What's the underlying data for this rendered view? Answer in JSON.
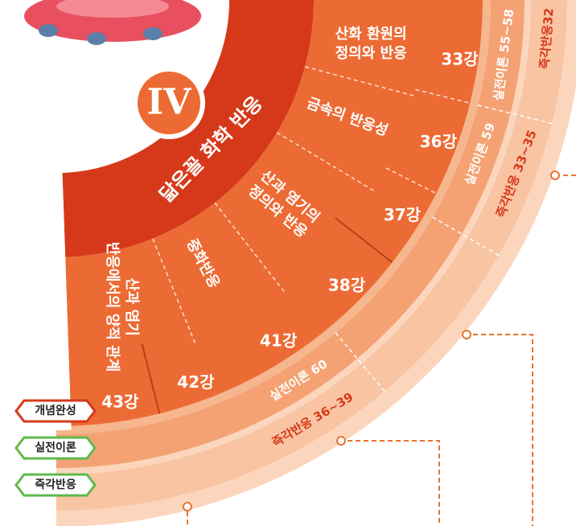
{
  "unit": {
    "number": "IV",
    "title": "닮은꼴 화학 반응"
  },
  "sections": [
    [
      "산화 환원의",
      "정의와 반응"
    ],
    [
      "금속의 반응성"
    ],
    [
      "산과 염기의",
      "정의와 반응"
    ],
    [
      "중화반응"
    ],
    [
      "산과 염기",
      "반응에서의 양적 관계"
    ]
  ],
  "lectures": [
    "33강",
    "36강",
    "37강",
    "38강",
    "41강",
    "42강",
    "43강"
  ],
  "practice": [
    "실전이론 55~58",
    "실전이론 59",
    "실전이론 60"
  ],
  "quick": [
    "즉각반응32",
    "즉각반응 33~35",
    "즉각반응 36~39"
  ],
  "legend": [
    "개념완성",
    "실전이론",
    "즉각반응"
  ]
}
